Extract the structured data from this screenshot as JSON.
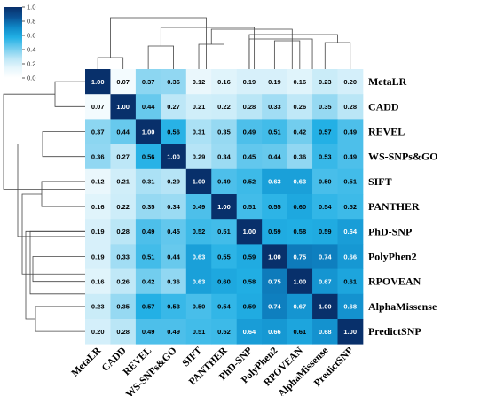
{
  "chart_data": {
    "type": "heatmap",
    "title": "",
    "xlabel": "",
    "ylabel": "",
    "labels": [
      "MetaLR",
      "CADD",
      "REVEL",
      "WS-SNPs&GO",
      "SIFT",
      "PANTHER",
      "PhD-SNP",
      "PolyPhen2",
      "RPOVEAN",
      "AlphaMissense",
      "PredictSNP"
    ],
    "values": [
      [
        1.0,
        0.07,
        0.37,
        0.36,
        0.12,
        0.16,
        0.19,
        0.19,
        0.16,
        0.23,
        0.2
      ],
      [
        0.07,
        1.0,
        0.44,
        0.27,
        0.21,
        0.22,
        0.28,
        0.33,
        0.26,
        0.35,
        0.28
      ],
      [
        0.37,
        0.44,
        1.0,
        0.56,
        0.31,
        0.35,
        0.49,
        0.51,
        0.42,
        0.57,
        0.49
      ],
      [
        0.36,
        0.27,
        0.56,
        1.0,
        0.29,
        0.34,
        0.45,
        0.44,
        0.36,
        0.53,
        0.49
      ],
      [
        0.12,
        0.21,
        0.31,
        0.29,
        1.0,
        0.49,
        0.52,
        0.63,
        0.63,
        0.5,
        0.51
      ],
      [
        0.16,
        0.22,
        0.35,
        0.34,
        0.49,
        1.0,
        0.51,
        0.55,
        0.6,
        0.54,
        0.52
      ],
      [
        0.19,
        0.28,
        0.49,
        0.45,
        0.52,
        0.51,
        1.0,
        0.59,
        0.58,
        0.59,
        0.64
      ],
      [
        0.19,
        0.33,
        0.51,
        0.44,
        0.63,
        0.55,
        0.59,
        1.0,
        0.75,
        0.74,
        0.66
      ],
      [
        0.16,
        0.26,
        0.42,
        0.36,
        0.63,
        0.6,
        0.58,
        0.75,
        1.0,
        0.67,
        0.61
      ],
      [
        0.23,
        0.35,
        0.57,
        0.53,
        0.5,
        0.54,
        0.59,
        0.74,
        0.67,
        1.0,
        0.68
      ],
      [
        0.2,
        0.28,
        0.49,
        0.49,
        0.51,
        0.52,
        0.64,
        0.66,
        0.61,
        0.68,
        1.0
      ]
    ],
    "colorbar": {
      "min": 0.0,
      "max": 1.0,
      "ticks": [
        "1.0",
        "0.8",
        "0.6",
        "0.4",
        "0.2",
        "0.0"
      ],
      "colors": [
        "#ffffff",
        "#e6f6fc",
        "#b8e5f6",
        "#6dcbee",
        "#22b0e5",
        "#0f89c8",
        "#0a5194",
        "#08306b"
      ]
    },
    "dendrogram": "clustered rows and columns",
    "grid": false,
    "legend": "colorbar top-left"
  }
}
